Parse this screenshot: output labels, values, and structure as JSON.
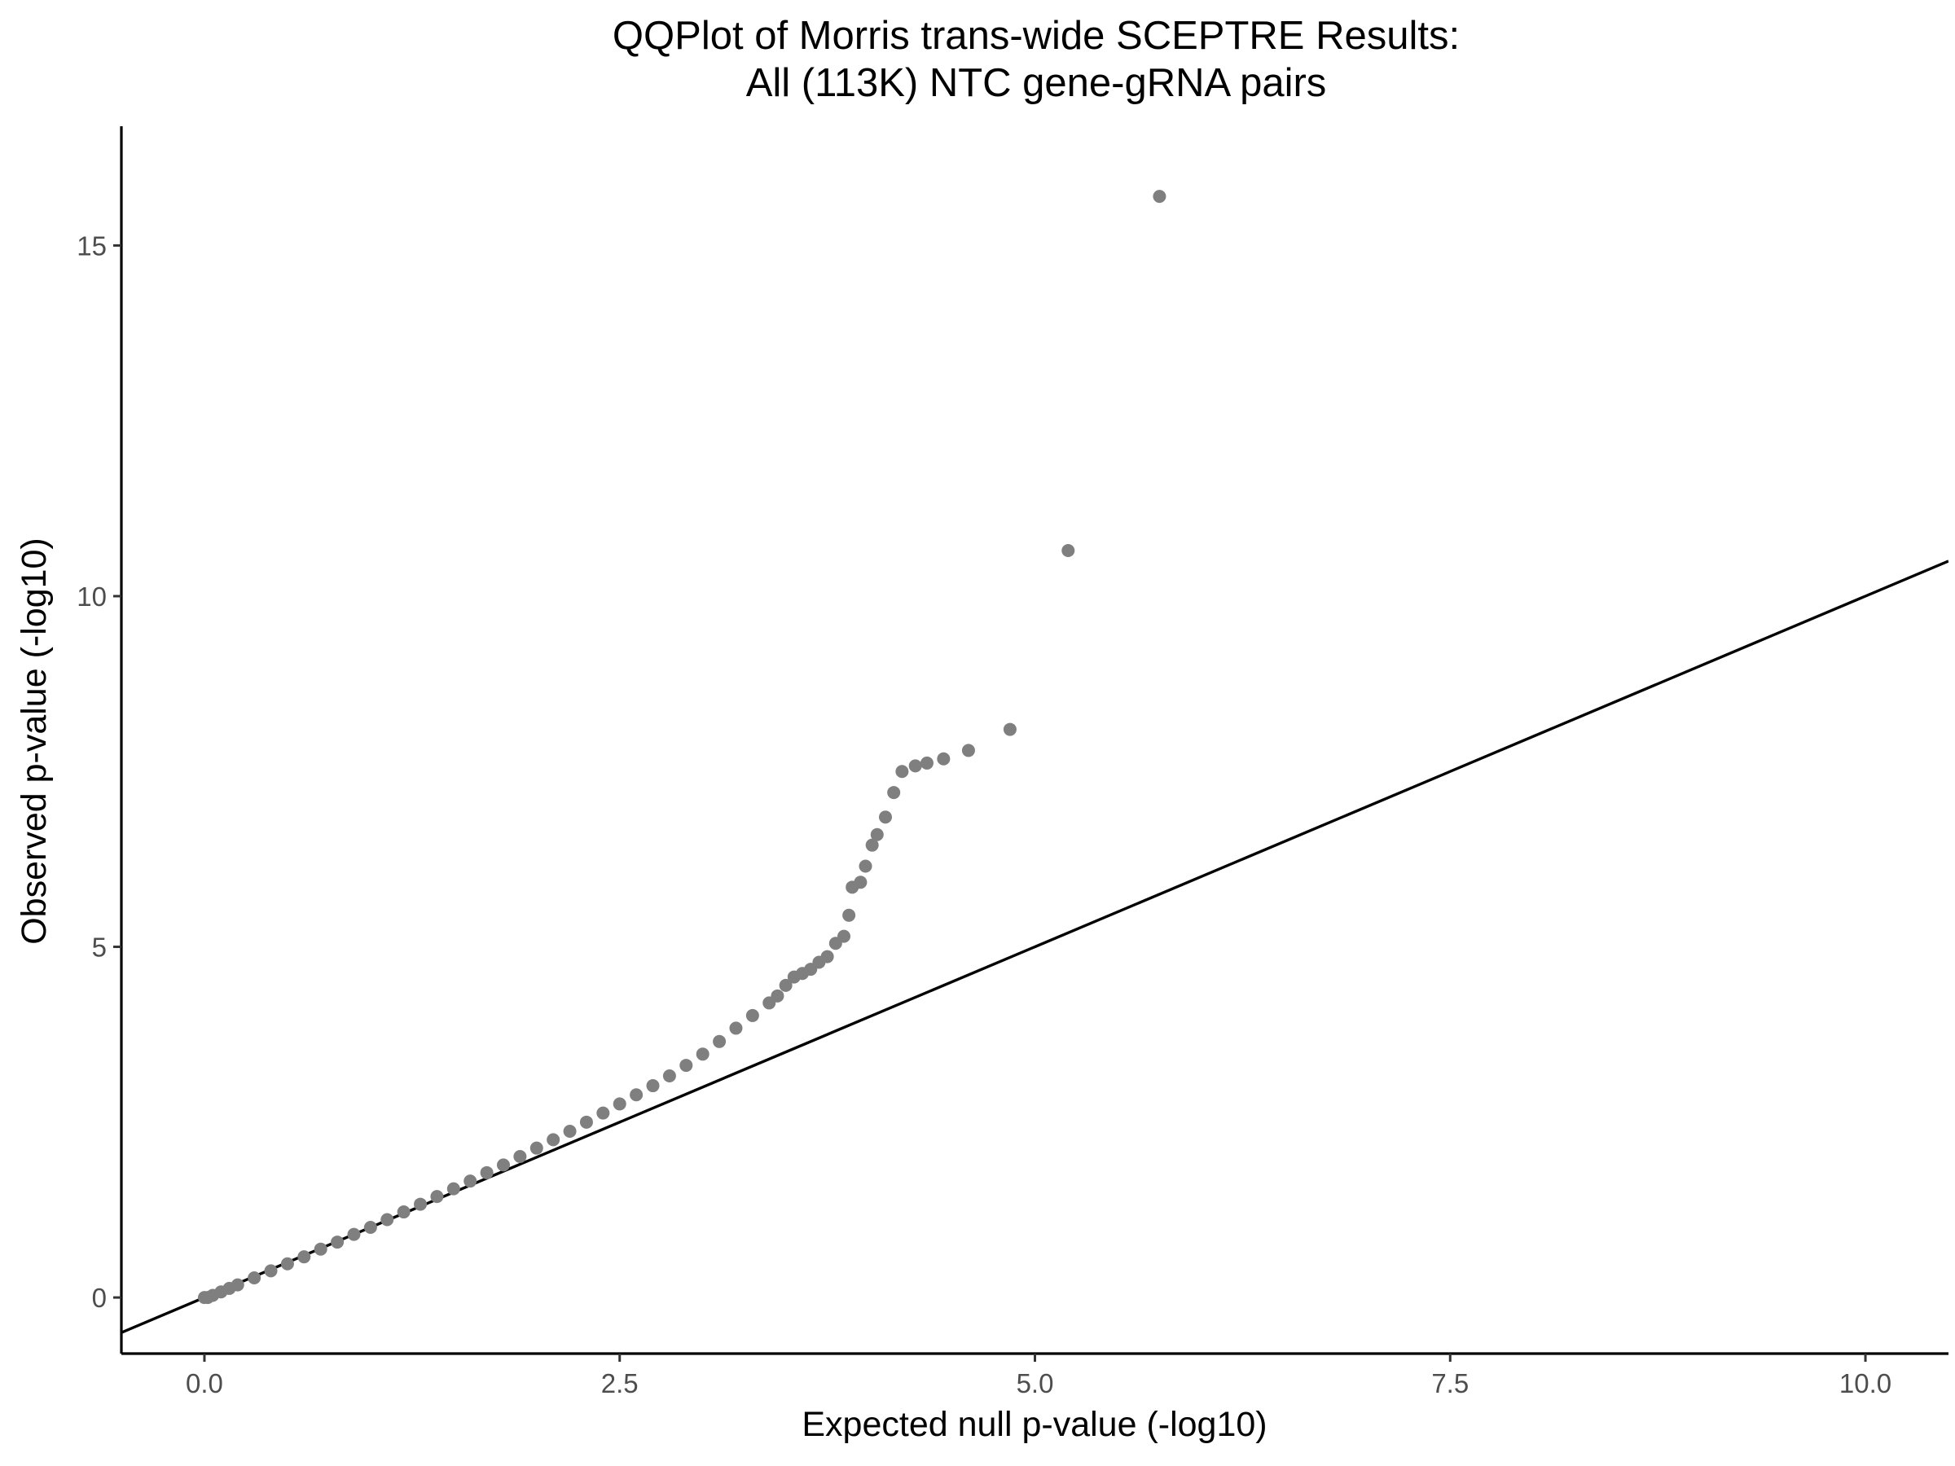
{
  "chart_data": {
    "type": "scatter",
    "title": "QQPlot of Morris trans-wide SCEPTRE Results:",
    "subtitle": "All (113K) NTC gene-gRNA pairs",
    "xlabel": "Expected null p-value (-log10)",
    "ylabel": "Observed p-value (-log10)",
    "xlim": [
      -0.5,
      10.5
    ],
    "ylim": [
      -0.8,
      16.7
    ],
    "x_ticks": [
      0,
      2.5,
      5,
      7.5,
      10
    ],
    "x_tick_labels": [
      "0.0",
      "2.5",
      "5.0",
      "7.5",
      "10.0"
    ],
    "y_ticks": [
      0,
      5,
      10,
      15
    ],
    "y_tick_labels": [
      "0",
      "5",
      "10",
      "15"
    ],
    "grid": false,
    "legend": "none",
    "reference_line": {
      "intercept": 0,
      "slope": 1
    },
    "colors": {
      "points": "#7f7f7f",
      "line": "#000000",
      "axis": "#000000",
      "tick_labels": "#4d4d4d"
    },
    "points": [
      [
        0.0,
        0.0
      ],
      [
        0.02,
        0.0
      ],
      [
        0.05,
        0.03
      ],
      [
        0.1,
        0.08
      ],
      [
        0.15,
        0.13
      ],
      [
        0.2,
        0.18
      ],
      [
        0.3,
        0.28
      ],
      [
        0.4,
        0.38
      ],
      [
        0.5,
        0.48
      ],
      [
        0.6,
        0.58
      ],
      [
        0.7,
        0.69
      ],
      [
        0.8,
        0.79
      ],
      [
        0.9,
        0.9
      ],
      [
        1.0,
        1.0
      ],
      [
        1.1,
        1.11
      ],
      [
        1.2,
        1.22
      ],
      [
        1.3,
        1.33
      ],
      [
        1.4,
        1.44
      ],
      [
        1.5,
        1.55
      ],
      [
        1.6,
        1.66
      ],
      [
        1.7,
        1.78
      ],
      [
        1.8,
        1.89
      ],
      [
        1.9,
        2.01
      ],
      [
        2.0,
        2.13
      ],
      [
        2.1,
        2.25
      ],
      [
        2.2,
        2.37
      ],
      [
        2.3,
        2.5
      ],
      [
        2.4,
        2.63
      ],
      [
        2.5,
        2.76
      ],
      [
        2.6,
        2.89
      ],
      [
        2.7,
        3.02
      ],
      [
        2.8,
        3.16
      ],
      [
        2.9,
        3.31
      ],
      [
        3.0,
        3.47
      ],
      [
        3.1,
        3.65
      ],
      [
        3.2,
        3.84
      ],
      [
        3.3,
        4.02
      ],
      [
        3.4,
        4.2
      ],
      [
        3.45,
        4.3
      ],
      [
        3.5,
        4.45
      ],
      [
        3.55,
        4.57
      ],
      [
        3.6,
        4.62
      ],
      [
        3.65,
        4.68
      ],
      [
        3.7,
        4.78
      ],
      [
        3.75,
        4.86
      ],
      [
        3.8,
        5.05
      ],
      [
        3.85,
        5.15
      ],
      [
        3.88,
        5.45
      ],
      [
        3.9,
        5.85
      ],
      [
        3.95,
        5.92
      ],
      [
        3.98,
        6.15
      ],
      [
        4.02,
        6.45
      ],
      [
        4.05,
        6.6
      ],
      [
        4.1,
        6.85
      ],
      [
        4.15,
        7.2
      ],
      [
        4.2,
        7.5
      ],
      [
        4.28,
        7.58
      ],
      [
        4.35,
        7.62
      ],
      [
        4.45,
        7.68
      ],
      [
        4.6,
        7.8
      ],
      [
        4.85,
        8.1
      ],
      [
        5.2,
        10.65
      ],
      [
        5.75,
        15.7
      ]
    ]
  }
}
